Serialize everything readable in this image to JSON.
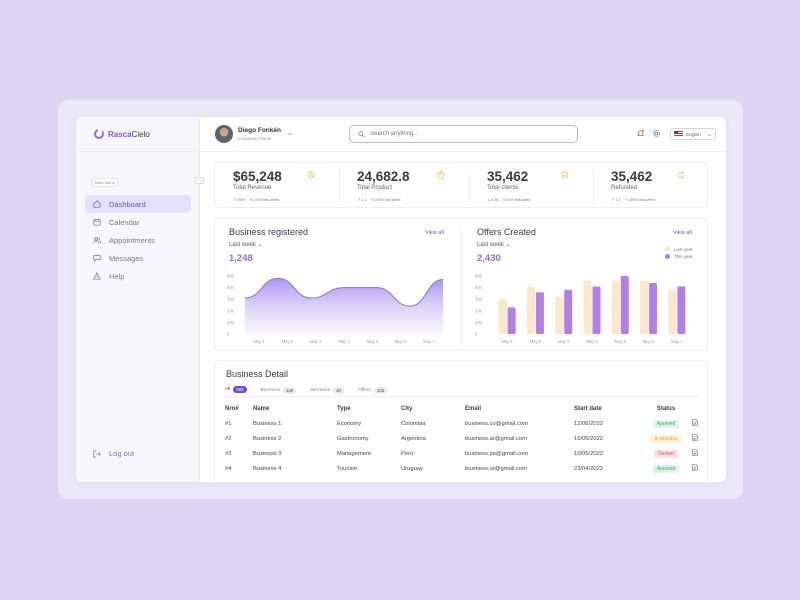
{
  "app": {
    "name_part1": "Rasca",
    "name_part2": "Cielo"
  },
  "sidebar": {
    "menu_label": "Main Menu",
    "collapse_glyph": "↔",
    "items": [
      {
        "label": "Dashboard",
        "icon": "home-icon",
        "active": true
      },
      {
        "label": "Calendar",
        "icon": "calendar-icon"
      },
      {
        "label": "Appointments",
        "icon": "users-icon"
      },
      {
        "label": "Messages",
        "icon": "message-icon"
      },
      {
        "label": "Help",
        "icon": "warning-icon"
      }
    ],
    "logout": {
      "label": "Log out",
      "icon": "logout-icon"
    }
  },
  "header": {
    "user_name": "Diego Fonkén",
    "user_role": "Company Owner",
    "user_chevron": "⌄",
    "search_placeholder": "Search anything...",
    "language": "English"
  },
  "stats": [
    {
      "value": "$65,248",
      "label": "Total Revenue",
      "trend_dir": "up",
      "trend_arrow": "↗",
      "trend_value": "25%",
      "trend_text": "+1.03% this week",
      "icon": "pie-chart-icon"
    },
    {
      "value": "24,682.8",
      "label": "Total Product",
      "trend_dir": "up",
      "trend_arrow": "↗",
      "trend_value": "3.1",
      "trend_text": "+0.49% this week",
      "icon": "bag-icon"
    },
    {
      "value": "35,462",
      "label": "Total clients",
      "trend_dir": "down",
      "trend_arrow": "↘",
      "trend_value": "2.56",
      "trend_text": "0.01% this week",
      "icon": "badge-icon"
    },
    {
      "value": "35,462",
      "label": "Refunded",
      "trend_dir": "up",
      "trend_arrow": "↗",
      "trend_value": "7.2",
      "trend_text": "+1.46% this week",
      "icon": "refresh-icon"
    }
  ],
  "business_chart": {
    "title": "Business registered",
    "view_all": "View all",
    "period": "Last  week",
    "total": "1,248"
  },
  "offers_chart": {
    "title": "Offers Created",
    "view_all": "View all",
    "period": "Last  week",
    "total": "2,430"
  },
  "chart_data": [
    {
      "type": "area",
      "title": "Business registered",
      "categories": [
        "May 1",
        "May 2",
        "May 3",
        "May 4",
        "May 5",
        "May 6",
        "May 7"
      ],
      "values": [
        310,
        480,
        310,
        400,
        400,
        240,
        470
      ],
      "ylim": [
        0,
        500
      ],
      "yticks": [
        0,
        100,
        200,
        300,
        400,
        500
      ],
      "color": "#8a6ee6"
    },
    {
      "type": "bar",
      "title": "Offers Created",
      "categories": [
        "May 1",
        "May 2",
        "May 3",
        "May 4",
        "May 5",
        "May 6",
        "May 7"
      ],
      "series": [
        {
          "name": "Last year",
          "values": [
            300,
            410,
            320,
            460,
            460,
            460,
            380
          ],
          "color": "#fbe8c8"
        },
        {
          "name": "This year",
          "values": [
            230,
            360,
            380,
            410,
            500,
            440,
            410
          ],
          "color": "#b37ee6"
        }
      ],
      "ylim": [
        0,
        500
      ],
      "yticks": [
        0,
        100,
        200,
        300,
        400,
        500
      ],
      "legend": "top-right"
    }
  ],
  "detail": {
    "title": "Business Detail",
    "tabs": [
      {
        "label": "All",
        "count": "082",
        "active": true
      },
      {
        "label": "Business",
        "count": "140"
      },
      {
        "label": "Members",
        "count": "30"
      },
      {
        "label": "Offers",
        "count": "105"
      }
    ],
    "columns": [
      "Nro#",
      "Name",
      "Type",
      "City",
      "Email",
      "Start date",
      "Status"
    ],
    "rows": [
      {
        "nro": "#1",
        "name": "Business 1",
        "type": "Economy",
        "city": "Colombia",
        "email": "business.co@gmail.com",
        "start": "12/06/2022",
        "status": "Aproved",
        "status_kind": "aproved"
      },
      {
        "nro": "#2",
        "name": "Business 2",
        "type": "Gastronomy",
        "city": "Argentina",
        "email": "business.ar@gmail.com",
        "start": "15/06/2022",
        "status": "In process",
        "status_kind": "inprocess"
      },
      {
        "nro": "#3",
        "name": "Business 3",
        "type": "Management",
        "city": "Perú",
        "email": "business.pe@gmail.com",
        "start": "10/05/2022",
        "status": "Denied",
        "status_kind": "denied"
      },
      {
        "nro": "#4",
        "name": "Business 4",
        "type": "Tourism",
        "city": "Uruguay",
        "email": "business.ur@gmail.com",
        "start": "23/04/2022",
        "status": "Aproved",
        "status_kind": "aproved"
      }
    ]
  }
}
